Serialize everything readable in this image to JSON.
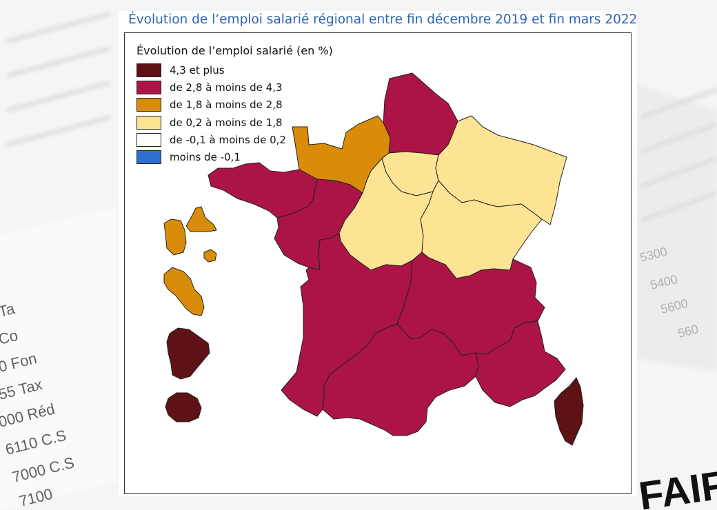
{
  "title": "Évolution de l’emploi salarié régional entre fin décembre 2019 et fin mars 2022",
  "legend": {
    "title": "Évolution de l’emploi salarié (en %)",
    "items": [
      {
        "label": "4,3 et plus",
        "color": "#5e1216"
      },
      {
        "label": "de 2,8 à moins de 4,3",
        "color": "#ab1445"
      },
      {
        "label": "de 1,8 à moins de 2,8",
        "color": "#d98b0a"
      },
      {
        "label": "de 0,2 à moins de 1,8",
        "color": "#fde394"
      },
      {
        "label": "de -0,1 à moins de 0,2",
        "color": "#ffffff"
      },
      {
        "label": "moins de -0,1",
        "color": "#2e6fcf"
      }
    ]
  },
  "map": {
    "regions": [
      {
        "name": "Hauts-de-France",
        "class": 1
      },
      {
        "name": "Normandie",
        "class": 2
      },
      {
        "name": "Île-de-France",
        "class": 3
      },
      {
        "name": "Grand Est",
        "class": 3
      },
      {
        "name": "Bretagne",
        "class": 1
      },
      {
        "name": "Pays de la Loire",
        "class": 1
      },
      {
        "name": "Centre-Val de Loire",
        "class": 3
      },
      {
        "name": "Bourgogne-Franche-Comté",
        "class": 3
      },
      {
        "name": "Nouvelle-Aquitaine",
        "class": 1
      },
      {
        "name": "Auvergne-Rhône-Alpes",
        "class": 1
      },
      {
        "name": "Occitanie",
        "class": 1
      },
      {
        "name": "Provence-Alpes-Côte d'Azur",
        "class": 1
      },
      {
        "name": "Corse",
        "class": 0
      },
      {
        "name": "Guadeloupe",
        "class": 2
      },
      {
        "name": "Martinique",
        "class": 2
      },
      {
        "name": "Guyane",
        "class": 0
      },
      {
        "name": "La Réunion",
        "class": 0
      }
    ]
  }
}
